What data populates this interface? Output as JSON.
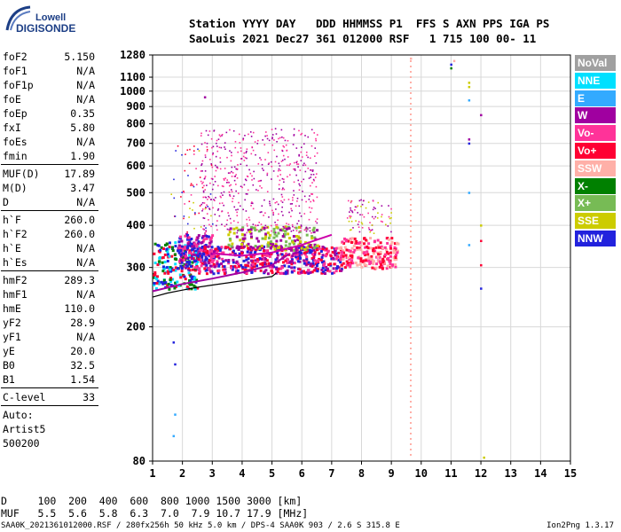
{
  "logo": {
    "top": "Lowell",
    "bottom": "DIGISONDE"
  },
  "header": {
    "line1": "Station YYYY DAY   DDD HHMMSS P1  FFS S AXN PPS IGA PS",
    "line2": "SaoLuis 2021 Dec27 361 012000 RSF   1 715 100 00- 11"
  },
  "params": {
    "group1": [
      {
        "label": "foF2",
        "value": "5.150"
      },
      {
        "label": "foF1",
        "value": "N/A"
      },
      {
        "label": "foF1p",
        "value": "N/A"
      },
      {
        "label": "foE",
        "value": "N/A"
      },
      {
        "label": "foEp",
        "value": "0.35"
      },
      {
        "label": "fxI",
        "value": "5.80"
      },
      {
        "label": "foEs",
        "value": "N/A"
      },
      {
        "label": "fmin",
        "value": "1.90"
      }
    ],
    "group2": [
      {
        "label": "MUF(D)",
        "value": "17.89"
      },
      {
        "label": "M(D)",
        "value": "3.47"
      },
      {
        "label": "D",
        "value": "N/A"
      }
    ],
    "group3": [
      {
        "label": "h`F",
        "value": "260.0"
      },
      {
        "label": "h`F2",
        "value": "260.0"
      },
      {
        "label": "h`E",
        "value": "N/A"
      },
      {
        "label": "h`Es",
        "value": "N/A"
      }
    ],
    "group4": [
      {
        "label": "hmF2",
        "value": "289.3"
      },
      {
        "label": "hmF1",
        "value": "N/A"
      },
      {
        "label": "hmE",
        "value": "110.0"
      },
      {
        "label": "yF2",
        "value": "28.9"
      },
      {
        "label": "yF1",
        "value": "N/A"
      },
      {
        "label": "yE",
        "value": "20.0"
      },
      {
        "label": "B0",
        "value": "32.5"
      },
      {
        "label": "B1",
        "value": "1.54"
      }
    ],
    "clevel": {
      "label": "C-level",
      "value": "33"
    },
    "auto_lines": [
      "Auto:",
      "Artist5",
      "500200"
    ]
  },
  "legend": [
    {
      "label": "NoVal",
      "color": "#a0a0a0"
    },
    {
      "label": "NNE",
      "color": "#00e0ff"
    },
    {
      "label": "E",
      "color": "#33aaff"
    },
    {
      "label": "W",
      "color": "#a000a0"
    },
    {
      "label": "Vo-",
      "color": "#ff3399"
    },
    {
      "label": "Vo+",
      "color": "#ff0033"
    },
    {
      "label": "SSW",
      "color": "#ffb0a8"
    },
    {
      "label": "X-",
      "color": "#008000"
    },
    {
      "label": "X+",
      "color": "#77bb55"
    },
    {
      "label": "SSE",
      "color": "#cccc00"
    },
    {
      "label": "NNW",
      "color": "#2222dd"
    }
  ],
  "dmuf": {
    "d_line": "D     100  200  400  600  800 1000 1500 3000 [km]",
    "muf_line": "MUF   5.5  5.6  5.8  6.3  7.0  7.9 10.7 17.9 [MHz]"
  },
  "footer": {
    "left": "SAA0K_2021361012000.RSF / 280fx256h 50 kHz 5.0 km / DPS-4 SAA0K 903 / 2.6 S 315.8 E",
    "right": "Ion2Png 1.3.17"
  },
  "chart_data": {
    "type": "scatter",
    "title": "",
    "xlabel": "",
    "ylabel": "",
    "xlim": [
      1,
      15
    ],
    "ylim": [
      80,
      1280
    ],
    "y_scale": "log",
    "x_ticks": [
      1,
      2,
      3,
      4,
      5,
      6,
      7,
      8,
      9,
      10,
      11,
      12,
      13,
      14,
      15
    ],
    "y_ticks": [
      80,
      200,
      300,
      400,
      500,
      600,
      700,
      800,
      900,
      1000,
      1100,
      1280
    ],
    "grid": true,
    "vertical_marker_x": 9.65,
    "profile_curve": [
      {
        "x": 1.0,
        "y": 245
      },
      {
        "x": 1.5,
        "y": 252
      },
      {
        "x": 2.0,
        "y": 257
      },
      {
        "x": 2.5,
        "y": 262
      },
      {
        "x": 3.0,
        "y": 266
      },
      {
        "x": 3.5,
        "y": 270
      },
      {
        "x": 4.0,
        "y": 274
      },
      {
        "x": 4.5,
        "y": 278
      },
      {
        "x": 5.0,
        "y": 282
      },
      {
        "x": 5.15,
        "y": 289
      }
    ],
    "trace_lower": [
      {
        "x": 1.0,
        "y": 255
      },
      {
        "x": 2.0,
        "y": 268
      },
      {
        "x": 3.0,
        "y": 278
      },
      {
        "x": 4.0,
        "y": 290
      },
      {
        "x": 5.0,
        "y": 305
      },
      {
        "x": 5.6,
        "y": 330
      }
    ],
    "trace_upper": [
      {
        "x": 3.0,
        "y": 330
      },
      {
        "x": 4.0,
        "y": 325
      },
      {
        "x": 5.0,
        "y": 332
      },
      {
        "x": 6.0,
        "y": 350
      },
      {
        "x": 7.0,
        "y": 375
      }
    ],
    "clusters": [
      {
        "x0": 1.0,
        "x1": 2.5,
        "y0": 260,
        "y1": 360,
        "colors": [
          "#2222dd",
          "#ff0033",
          "#008000",
          "#00e0ff"
        ],
        "n": 220
      },
      {
        "x0": 1.8,
        "x1": 3.0,
        "y0": 300,
        "y1": 380,
        "colors": [
          "#2222dd",
          "#ff3399",
          "#a000a0"
        ],
        "n": 160
      },
      {
        "x0": 2.5,
        "x1": 7.3,
        "y0": 290,
        "y1": 350,
        "colors": [
          "#ff0033",
          "#ff3399",
          "#a000a0",
          "#2222dd"
        ],
        "n": 520
      },
      {
        "x0": 3.5,
        "x1": 6.5,
        "y0": 340,
        "y1": 400,
        "colors": [
          "#cccc00",
          "#77bb55",
          "#a000a0"
        ],
        "n": 160
      },
      {
        "x0": 7.2,
        "x1": 9.2,
        "y0": 300,
        "y1": 370,
        "colors": [
          "#ff0033",
          "#ff3399",
          "#ffb0a8"
        ],
        "n": 220
      },
      {
        "x0": 2.6,
        "x1": 6.5,
        "y0": 380,
        "y1": 780,
        "colors": [
          "#a000a0",
          "#ff3399"
        ],
        "n": 520
      },
      {
        "x0": 7.5,
        "x1": 9.0,
        "y0": 380,
        "y1": 480,
        "colors": [
          "#a000a0",
          "#ff3399",
          "#cccc00"
        ],
        "n": 80
      },
      {
        "x0": 1.6,
        "x1": 3.0,
        "y0": 380,
        "y1": 700,
        "colors": [
          "#2222dd",
          "#cccc00",
          "#ff3399",
          "#ff0033"
        ],
        "n": 60
      }
    ],
    "isolated_points": [
      {
        "x": 9.65,
        "y": 1250,
        "c": "#ffb0a8"
      },
      {
        "x": 11.1,
        "y": 1230,
        "c": "#ffb0a8"
      },
      {
        "x": 11.0,
        "y": 1170,
        "c": "#008000"
      },
      {
        "x": 11.0,
        "y": 1200,
        "c": "#2222dd"
      },
      {
        "x": 11.6,
        "y": 1060,
        "c": "#cccc00"
      },
      {
        "x": 11.6,
        "y": 1030,
        "c": "#cccc00"
      },
      {
        "x": 11.6,
        "y": 940,
        "c": "#33aaff"
      },
      {
        "x": 12.0,
        "y": 850,
        "c": "#a000a0"
      },
      {
        "x": 11.6,
        "y": 720,
        "c": "#a000a0"
      },
      {
        "x": 11.6,
        "y": 700,
        "c": "#2222dd"
      },
      {
        "x": 11.6,
        "y": 500,
        "c": "#33aaff"
      },
      {
        "x": 12.0,
        "y": 400,
        "c": "#cccc00"
      },
      {
        "x": 12.0,
        "y": 360,
        "c": "#ff0033"
      },
      {
        "x": 12.0,
        "y": 305,
        "c": "#ff0033"
      },
      {
        "x": 12.0,
        "y": 260,
        "c": "#2222dd"
      },
      {
        "x": 11.6,
        "y": 350,
        "c": "#33aaff"
      },
      {
        "x": 12.1,
        "y": 82,
        "c": "#cccc00"
      },
      {
        "x": 2.75,
        "y": 960,
        "c": "#a000a0"
      },
      {
        "x": 1.7,
        "y": 180,
        "c": "#2222dd"
      },
      {
        "x": 1.75,
        "y": 155,
        "c": "#2222dd"
      },
      {
        "x": 1.75,
        "y": 110,
        "c": "#33aaff"
      },
      {
        "x": 1.7,
        "y": 95,
        "c": "#33aaff"
      }
    ]
  }
}
